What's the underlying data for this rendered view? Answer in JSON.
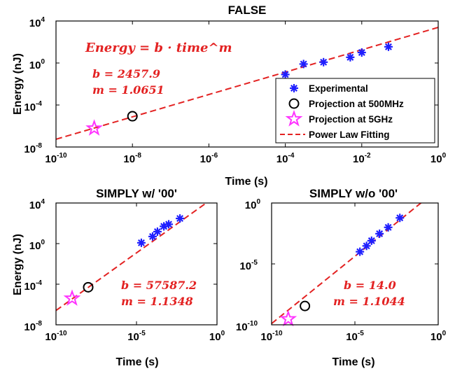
{
  "colors": {
    "experimental": "#1f1fff",
    "projection_500": "#000000",
    "projection_5g": "#ff33ff",
    "fit": "#e32222",
    "annotation": "#e32222"
  },
  "legend": {
    "items": [
      {
        "label": "Experimental",
        "marker": "asterisk"
      },
      {
        "label": "Projection at 500MHz",
        "marker": "circle"
      },
      {
        "label": "Projection at 5GHz",
        "marker": "pentagram"
      },
      {
        "label": "Power Law Fitting",
        "marker": "dashed-line"
      }
    ]
  },
  "chart_data": [
    {
      "type": "scatter",
      "title": "FALSE",
      "xlabel": "Time (s)",
      "ylabel": "Energy (nJ)",
      "xscale": "log",
      "yscale": "log",
      "xlim": [
        "1e-10",
        "1"
      ],
      "ylim": [
        "1e-8",
        "1e4"
      ],
      "xticks": [
        {
          "base": "10",
          "exp": "-10"
        },
        {
          "base": "10",
          "exp": "-8"
        },
        {
          "base": "10",
          "exp": "-6"
        },
        {
          "base": "10",
          "exp": "-4"
        },
        {
          "base": "10",
          "exp": "-2"
        },
        {
          "base": "10",
          "exp": "0"
        }
      ],
      "yticks": [
        {
          "base": "10",
          "exp": "-8"
        },
        {
          "base": "10",
          "exp": "-4"
        },
        {
          "base": "10",
          "exp": "0"
        },
        {
          "base": "10",
          "exp": "4"
        }
      ],
      "formula": "Energy = b · time^m",
      "b_text": "b = 2457.9",
      "m_text": "m = 1.0651",
      "fit": {
        "b": 2457.9,
        "m": 1.0651
      },
      "series": [
        {
          "name": "Experimental",
          "x": [
            0.0001,
            0.0003,
            0.001,
            0.005,
            0.01,
            0.05
          ],
          "y": [
            0.08,
            0.8,
            1.2,
            3.5,
            10,
            35
          ]
        },
        {
          "name": "Projection at 500MHz",
          "x": [
            1e-08
          ],
          "y": [
            8.5e-06
          ]
        },
        {
          "name": "Projection at 5GHz",
          "x": [
            1e-09
          ],
          "y": [
            6e-07
          ]
        }
      ]
    },
    {
      "type": "scatter",
      "title": "SIMPLY w/ '00'",
      "xlabel": "Time (s)",
      "ylabel": "Energy (nJ)",
      "xscale": "log",
      "yscale": "log",
      "xlim": [
        "1e-10",
        "1"
      ],
      "ylim": [
        "1e-8",
        "1e4"
      ],
      "xticks": [
        {
          "base": "10",
          "exp": "-10"
        },
        {
          "base": "10",
          "exp": "-5"
        },
        {
          "base": "10",
          "exp": "0"
        }
      ],
      "yticks": [
        {
          "base": "10",
          "exp": "-8"
        },
        {
          "base": "10",
          "exp": "-4"
        },
        {
          "base": "10",
          "exp": "0"
        },
        {
          "base": "10",
          "exp": "4"
        }
      ],
      "b_text": "b = 57587.2",
      "m_text": "m = 1.1348",
      "fit": {
        "b": 57587.2,
        "m": 1.1348
      },
      "series": [
        {
          "name": "Experimental",
          "x": [
            2e-05,
            0.0001,
            0.0002,
            0.0005,
            0.001,
            0.005
          ],
          "y": [
            1.2,
            5,
            15,
            50,
            80,
            300
          ]
        },
        {
          "name": "Projection at 500MHz",
          "x": [
            1e-08
          ],
          "y": [
            5e-05
          ]
        },
        {
          "name": "Projection at 5GHz",
          "x": [
            1e-09
          ],
          "y": [
            4e-06
          ]
        }
      ]
    },
    {
      "type": "scatter",
      "title": "SIMPLY w/o '00'",
      "xlabel": "Time (s)",
      "ylabel": "",
      "xscale": "log",
      "yscale": "log",
      "xlim": [
        "1e-10",
        "1"
      ],
      "ylim": [
        "1e-10",
        "1"
      ],
      "xticks": [
        {
          "base": "10",
          "exp": "-10"
        },
        {
          "base": "10",
          "exp": "-5"
        },
        {
          "base": "10",
          "exp": "0"
        }
      ],
      "yticks": [
        {
          "base": "10",
          "exp": "-10"
        },
        {
          "base": "10",
          "exp": "-5"
        },
        {
          "base": "10",
          "exp": "0"
        }
      ],
      "b_text": "b = 14.0",
      "m_text": "m = 1.1044",
      "fit": {
        "b": 14.0,
        "m": 1.1044
      },
      "series": [
        {
          "name": "Experimental",
          "x": [
            2e-05,
            5e-05,
            0.0001,
            0.0003,
            0.001,
            0.005
          ],
          "y": [
            0.0001,
            0.0003,
            0.0008,
            0.003,
            0.01,
            0.06
          ]
        },
        {
          "name": "Projection at 500MHz",
          "x": [
            1e-08
          ],
          "y": [
            3.5e-09
          ]
        },
        {
          "name": "Projection at 5GHz",
          "x": [
            1e-09
          ],
          "y": [
            3e-10
          ]
        }
      ]
    }
  ]
}
